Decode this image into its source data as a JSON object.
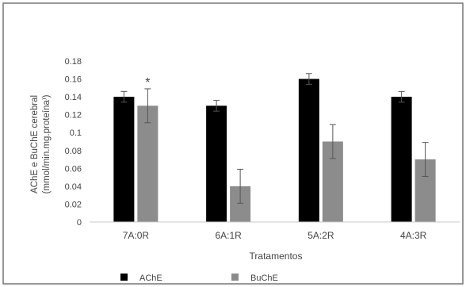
{
  "chart_data": {
    "type": "bar",
    "title": "",
    "xlabel": "Tratamentos",
    "ylabel_lines": [
      "AChE e BuChE cerebral",
      "(mmol/min.mg.proteína⁾)"
    ],
    "categories": [
      "7A:0R",
      "6A:1R",
      "5A:2R",
      "4A:3R"
    ],
    "ylim": [
      0,
      0.18
    ],
    "yticks": [
      "0",
      "0.02",
      "0.04",
      "0.06",
      "0.08",
      "0.1",
      "0.12",
      "0.14",
      "0.16",
      "0.18"
    ],
    "grid": false,
    "legend_position": "bottom-left",
    "series": [
      {
        "name": "AChE",
        "color": "#000000",
        "values": [
          0.14,
          0.13,
          0.16,
          0.14
        ],
        "errors": [
          0.006,
          0.006,
          0.006,
          0.006
        ]
      },
      {
        "name": "BuChE",
        "color": "#8c8c8c",
        "values": [
          0.13,
          0.04,
          0.09,
          0.07
        ],
        "errors": [
          0.019,
          0.019,
          0.019,
          0.019
        ]
      }
    ],
    "annotations": [
      {
        "text": "*",
        "category": "7A:0R",
        "series": "BuChE"
      }
    ]
  }
}
